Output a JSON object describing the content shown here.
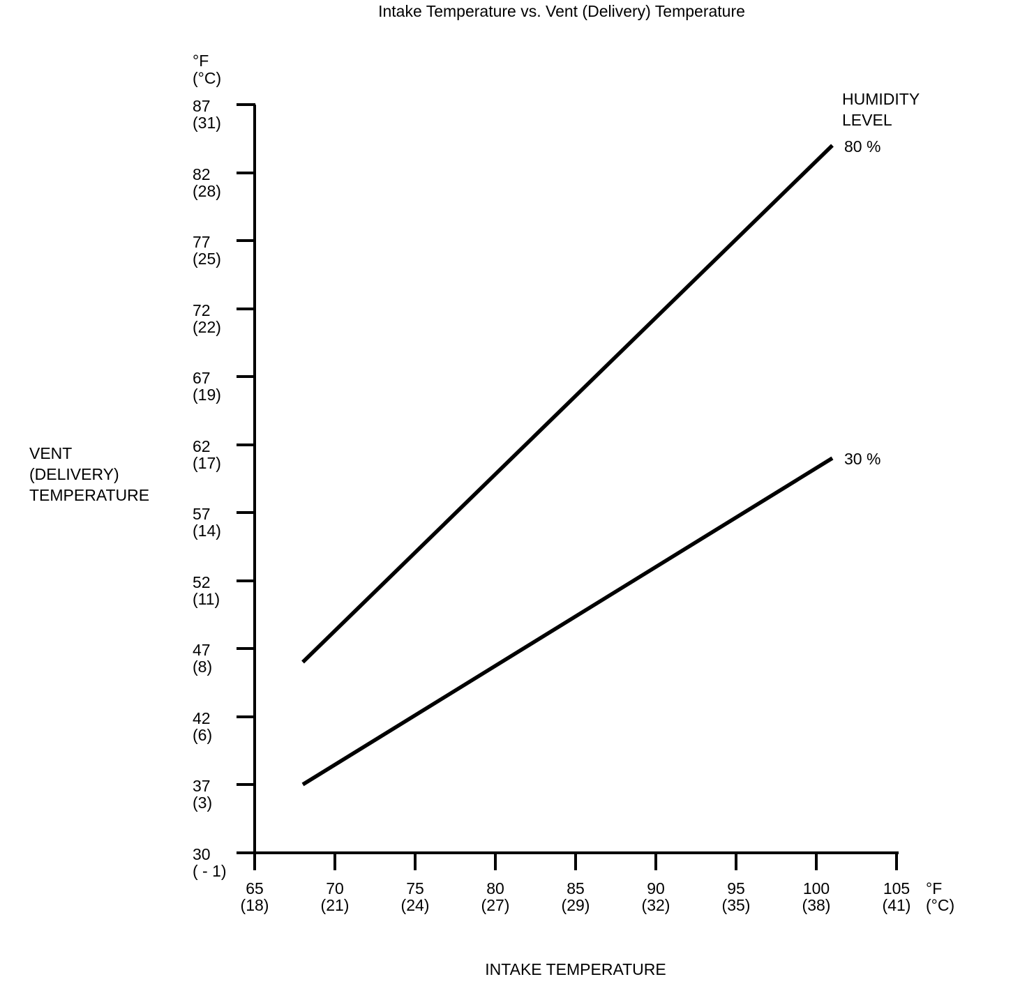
{
  "chart_data": {
    "type": "line",
    "title": "Intake Temperature vs. Vent (Delivery) Temperature",
    "background_color": "#ffffff",
    "line_color": "#000000",
    "grid": false,
    "x_axis": {
      "title": "INTAKE TEMPERATURE",
      "unit_lines": [
        "°F",
        "(°C)"
      ],
      "range_f": [
        65,
        105
      ],
      "ticks": [
        {
          "f": "65",
          "c": "(18)"
        },
        {
          "f": "70",
          "c": "(21)"
        },
        {
          "f": "75",
          "c": "(24)"
        },
        {
          "f": "80",
          "c": "(27)"
        },
        {
          "f": "85",
          "c": "(29)"
        },
        {
          "f": "90",
          "c": "(32)"
        },
        {
          "f": "95",
          "c": "(35)"
        },
        {
          "f": "100",
          "c": "(38)"
        },
        {
          "f": "105",
          "c": "(41)"
        }
      ]
    },
    "y_axis": {
      "title_lines": [
        "VENT",
        "(DELIVERY)",
        "TEMPERATURE"
      ],
      "unit_lines": [
        "°F",
        "(°C)"
      ],
      "range_f": [
        30,
        87
      ],
      "ticks": [
        {
          "f": "87",
          "c": "(31)"
        },
        {
          "f": "82",
          "c": "(28)"
        },
        {
          "f": "77",
          "c": "(25)"
        },
        {
          "f": "72",
          "c": "(22)"
        },
        {
          "f": "67",
          "c": "(19)"
        },
        {
          "f": "62",
          "c": "(17)"
        },
        {
          "f": "57",
          "c": "(14)"
        },
        {
          "f": "52",
          "c": "(11)"
        },
        {
          "f": "47",
          "c": "(8)"
        },
        {
          "f": "42",
          "c": "(6)"
        },
        {
          "f": "37",
          "c": "(3)"
        },
        {
          "f": "30",
          "c": "( - 1)"
        }
      ]
    },
    "legend": {
      "title_lines": [
        "HUMIDITY",
        "LEVEL"
      ],
      "position": "top-right"
    },
    "series": [
      {
        "name": "80 % humidity level",
        "label": "80 %",
        "points": [
          {
            "intake_f": 68,
            "vent_f": 46
          },
          {
            "intake_f": 101,
            "vent_f": 84
          }
        ]
      },
      {
        "name": "30 % humidity level",
        "label": "30 %",
        "points": [
          {
            "intake_f": 68,
            "vent_f": 37
          },
          {
            "intake_f": 101,
            "vent_f": 61
          }
        ]
      }
    ]
  }
}
